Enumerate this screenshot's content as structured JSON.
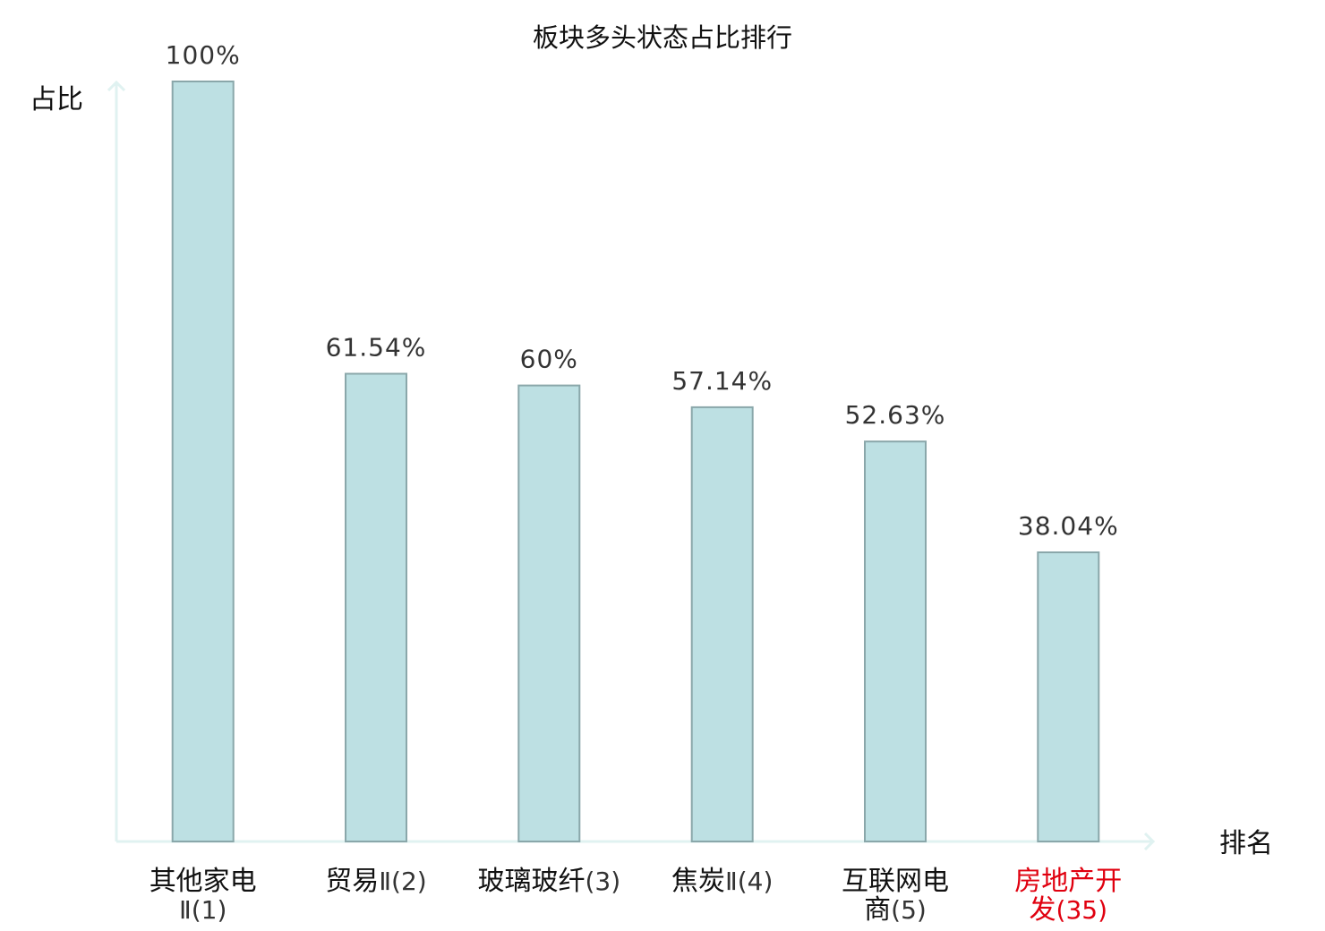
{
  "colors": {
    "bar_fill": "#bde0e3",
    "bar_stroke": "#8aa7aa",
    "axis": "#e0f2f1",
    "text": "#111111",
    "value_text": "#333333",
    "highlight": "#e0000f"
  },
  "chart_data": {
    "type": "bar",
    "title": "板块多头状态占比排行",
    "xlabel": "排名",
    "ylabel": "占比",
    "ylim": [
      0,
      100
    ],
    "grid": false,
    "categories": [
      {
        "lines": [
          "其他家电",
          "Ⅱ(1)"
        ],
        "highlight": false
      },
      {
        "lines": [
          "贸易Ⅱ(2)"
        ],
        "highlight": false
      },
      {
        "lines": [
          "玻璃玻纤(3)"
        ],
        "highlight": false
      },
      {
        "lines": [
          "焦炭Ⅱ(4)"
        ],
        "highlight": false
      },
      {
        "lines": [
          "互联网电",
          "商(5)"
        ],
        "highlight": false
      },
      {
        "lines": [
          "房地产开",
          "发(35)"
        ],
        "highlight": true
      }
    ],
    "values": [
      100,
      61.54,
      60,
      57.14,
      52.63,
      38.04
    ],
    "value_labels": [
      "100%",
      "61.54%",
      "60%",
      "57.14%",
      "52.63%",
      "38.04%"
    ]
  }
}
